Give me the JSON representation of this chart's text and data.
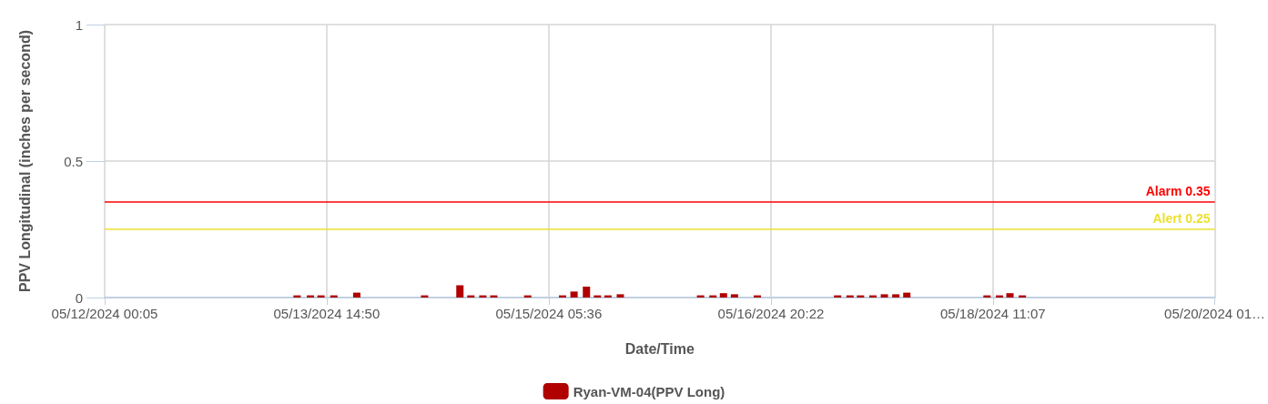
{
  "chart_data": {
    "type": "bar",
    "xlabel": "Date/Time",
    "ylabel": "PPV Longitudinal (inches per second)",
    "xlim": [
      "2024-05-12T00:05",
      "2024-05-20T01:50"
    ],
    "xticks": [
      {
        "value": "2024-05-12T00:05",
        "label": "05/12/2024 00:05"
      },
      {
        "value": "2024-05-13T14:50",
        "label": "05/13/2024 14:50"
      },
      {
        "value": "2024-05-15T05:36",
        "label": "05/15/2024 05:36"
      },
      {
        "value": "2024-05-16T20:22",
        "label": "05/16/2024 20:22"
      },
      {
        "value": "2024-05-18T11:07",
        "label": "05/18/2024 11:07"
      },
      {
        "value": "2024-05-20T01:50",
        "label": "05/20/2024 01…"
      }
    ],
    "ylim": [
      0,
      1
    ],
    "yticks": [
      0,
      0.5,
      1
    ],
    "series": [
      {
        "name": "Ryan-VM-04(PPV Long)",
        "color": "#b00000",
        "x": [
          "2024-05-13T09:40",
          "2024-05-13T12:00",
          "2024-05-13T13:50",
          "2024-05-13T16:05",
          "2024-05-13T20:05",
          "2024-05-14T07:55",
          "2024-05-14T14:05",
          "2024-05-14T16:00",
          "2024-05-14T18:05",
          "2024-05-14T20:00",
          "2024-05-15T01:55",
          "2024-05-15T08:00",
          "2024-05-15T10:00",
          "2024-05-15T12:10",
          "2024-05-15T14:05",
          "2024-05-15T15:55",
          "2024-05-15T18:05",
          "2024-05-16T08:05",
          "2024-05-16T10:15",
          "2024-05-16T12:05",
          "2024-05-16T14:00",
          "2024-05-16T18:00",
          "2024-05-17T08:00",
          "2024-05-17T10:10",
          "2024-05-17T12:00",
          "2024-05-17T14:10",
          "2024-05-17T16:10",
          "2024-05-17T18:10",
          "2024-05-17T20:05",
          "2024-05-18T10:05",
          "2024-05-18T12:15",
          "2024-05-18T14:05",
          "2024-05-18T16:15"
        ],
        "values": [
          0.008,
          0.008,
          0.008,
          0.008,
          0.018,
          0.008,
          0.045,
          0.008,
          0.008,
          0.008,
          0.008,
          0.008,
          0.022,
          0.04,
          0.008,
          0.008,
          0.012,
          0.008,
          0.008,
          0.016,
          0.012,
          0.008,
          0.008,
          0.008,
          0.008,
          0.008,
          0.012,
          0.012,
          0.018,
          0.008,
          0.008,
          0.016,
          0.008
        ]
      }
    ],
    "ref_lines": [
      {
        "axis": "y",
        "value": 0.35,
        "label": "Alarm 0.35",
        "color": "#ff0000"
      },
      {
        "axis": "y",
        "value": 0.25,
        "label": "Alert 0.25",
        "color": "#ebe030"
      }
    ],
    "grid": true,
    "legend": "bottom"
  }
}
